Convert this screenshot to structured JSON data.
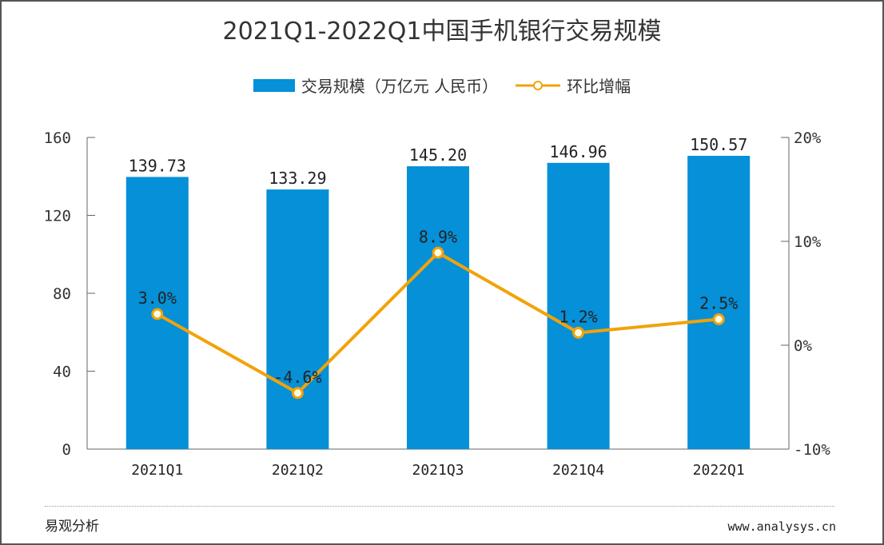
{
  "chart_data": {
    "type": "bar+line",
    "title": "2021Q1-2022Q1中国手机银行交易规模",
    "categories": [
      "2021Q1",
      "2021Q2",
      "2021Q3",
      "2021Q4",
      "2022Q1"
    ],
    "series": [
      {
        "name": "交易规模（万亿元 人民币）",
        "type": "bar",
        "axis": "left",
        "values": [
          139.73,
          133.29,
          145.2,
          146.96,
          150.57
        ],
        "labels": [
          "139.73",
          "133.29",
          "145.20",
          "146.96",
          "150.57"
        ],
        "color": "#0590d8"
      },
      {
        "name": "环比增幅",
        "type": "line",
        "axis": "right",
        "values": [
          3.0,
          -4.6,
          8.9,
          1.2,
          2.5
        ],
        "labels": [
          "3.0%",
          "-4.6%",
          "8.9%",
          "1.2%",
          "2.5%"
        ],
        "color": "#f0a30a"
      }
    ],
    "y_left": {
      "range": [
        0,
        160
      ],
      "ticks": [
        "0",
        "40",
        "80",
        "120",
        "160"
      ],
      "tick_values": [
        0,
        40,
        80,
        120,
        160
      ]
    },
    "y_right": {
      "range": [
        -10,
        20
      ],
      "ticks": [
        "-10%",
        "0%",
        "10%",
        "20%"
      ],
      "tick_values": [
        -10,
        0,
        10,
        20
      ]
    },
    "grid": false,
    "legend": "top-center"
  },
  "footer": {
    "source": "易观分析",
    "url": "www.analysys.cn"
  }
}
